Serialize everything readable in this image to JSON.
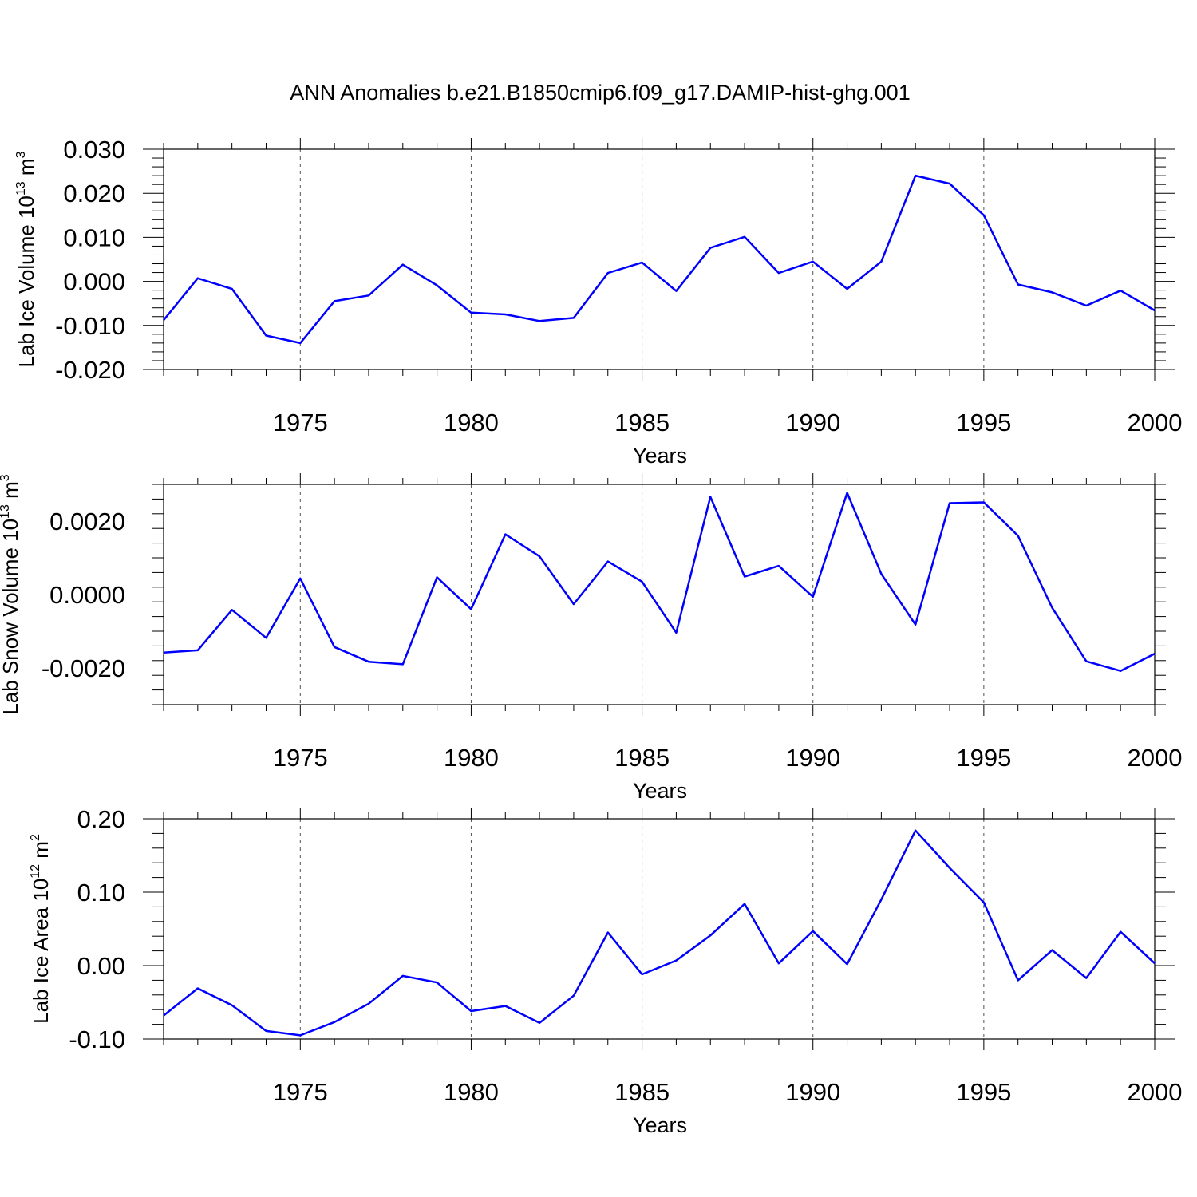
{
  "chart_data": {
    "title": "ANN Anomalies b.e21.B1850cmip6.f09_g17.DAMIP-hist-ghg.001",
    "type": "line",
    "line_color": "#0000ff",
    "x": [
      1971,
      1972,
      1973,
      1974,
      1975,
      1976,
      1977,
      1978,
      1979,
      1980,
      1981,
      1982,
      1983,
      1984,
      1985,
      1986,
      1987,
      1988,
      1989,
      1990,
      1991,
      1992,
      1993,
      1994,
      1995,
      1996,
      1997,
      1998,
      1999,
      2000
    ],
    "xlim": [
      1971,
      2000
    ],
    "xticks": [
      1975,
      1980,
      1985,
      1990,
      1995,
      2000
    ],
    "xlabel": "Years",
    "panels": [
      {
        "ylabel_prefix": "Lab Ice Volume 10",
        "ylabel_exp": "13",
        "ylabel_unit": " m",
        "ylabel_unit_exp": "3",
        "ylim": [
          -0.02,
          0.03
        ],
        "yticks": [
          "0.030",
          "0.020",
          "0.010",
          "0.000",
          "-0.010",
          "-0.020"
        ],
        "ytick_values": [
          0.03,
          0.02,
          0.01,
          0.0,
          -0.01,
          -0.02
        ],
        "values": [
          -0.0088,
          0.0007,
          -0.0017,
          -0.0123,
          -0.014,
          -0.0045,
          -0.0032,
          0.0038,
          -0.0009,
          -0.0071,
          -0.0075,
          -0.009,
          -0.0083,
          0.0019,
          0.0043,
          -0.0022,
          0.0076,
          0.0101,
          0.0019,
          0.0045,
          -0.0017,
          0.0045,
          0.024,
          0.0222,
          0.015,
          -0.0007,
          -0.0025,
          -0.0055,
          -0.0021,
          -0.0066
        ]
      },
      {
        "ylabel_prefix": "Lab Snow Volume 10",
        "ylabel_exp": "13",
        "ylabel_unit": " m",
        "ylabel_unit_exp": "3",
        "ylim": [
          -0.003,
          0.003
        ],
        "yticks": [
          "0.0020",
          "0.0000",
          "-0.0020"
        ],
        "ytick_values": [
          0.002,
          0.0,
          -0.002
        ],
        "values": [
          -0.00158,
          -0.00152,
          -0.00042,
          -0.00118,
          0.00044,
          -0.00143,
          -0.00183,
          -0.0019,
          0.00047,
          -0.0004,
          0.00164,
          0.00104,
          -0.00026,
          0.0009,
          0.00035,
          -0.00104,
          0.00266,
          0.00049,
          0.00078,
          -6e-05,
          0.00277,
          0.00056,
          -0.00082,
          0.00249,
          0.00251,
          0.0016,
          -0.00036,
          -0.00182,
          -0.00208,
          -0.00161
        ]
      },
      {
        "ylabel_prefix": "Lab Ice Area 10",
        "ylabel_exp": "12",
        "ylabel_unit": " m",
        "ylabel_unit_exp": "2",
        "ylim": [
          -0.1,
          0.2
        ],
        "yticks": [
          "0.20",
          "0.10",
          "0.00",
          "-0.10"
        ],
        "ytick_values": [
          0.2,
          0.1,
          0.0,
          -0.1
        ],
        "values": [
          -0.068,
          -0.031,
          -0.054,
          -0.089,
          -0.095,
          -0.077,
          -0.052,
          -0.014,
          -0.023,
          -0.062,
          -0.055,
          -0.078,
          -0.041,
          0.045,
          -0.012,
          0.007,
          0.041,
          0.084,
          0.003,
          0.047,
          0.002,
          0.09,
          0.184,
          0.133,
          0.086,
          -0.02,
          0.021,
          -0.017,
          0.046,
          0.003
        ]
      }
    ]
  }
}
